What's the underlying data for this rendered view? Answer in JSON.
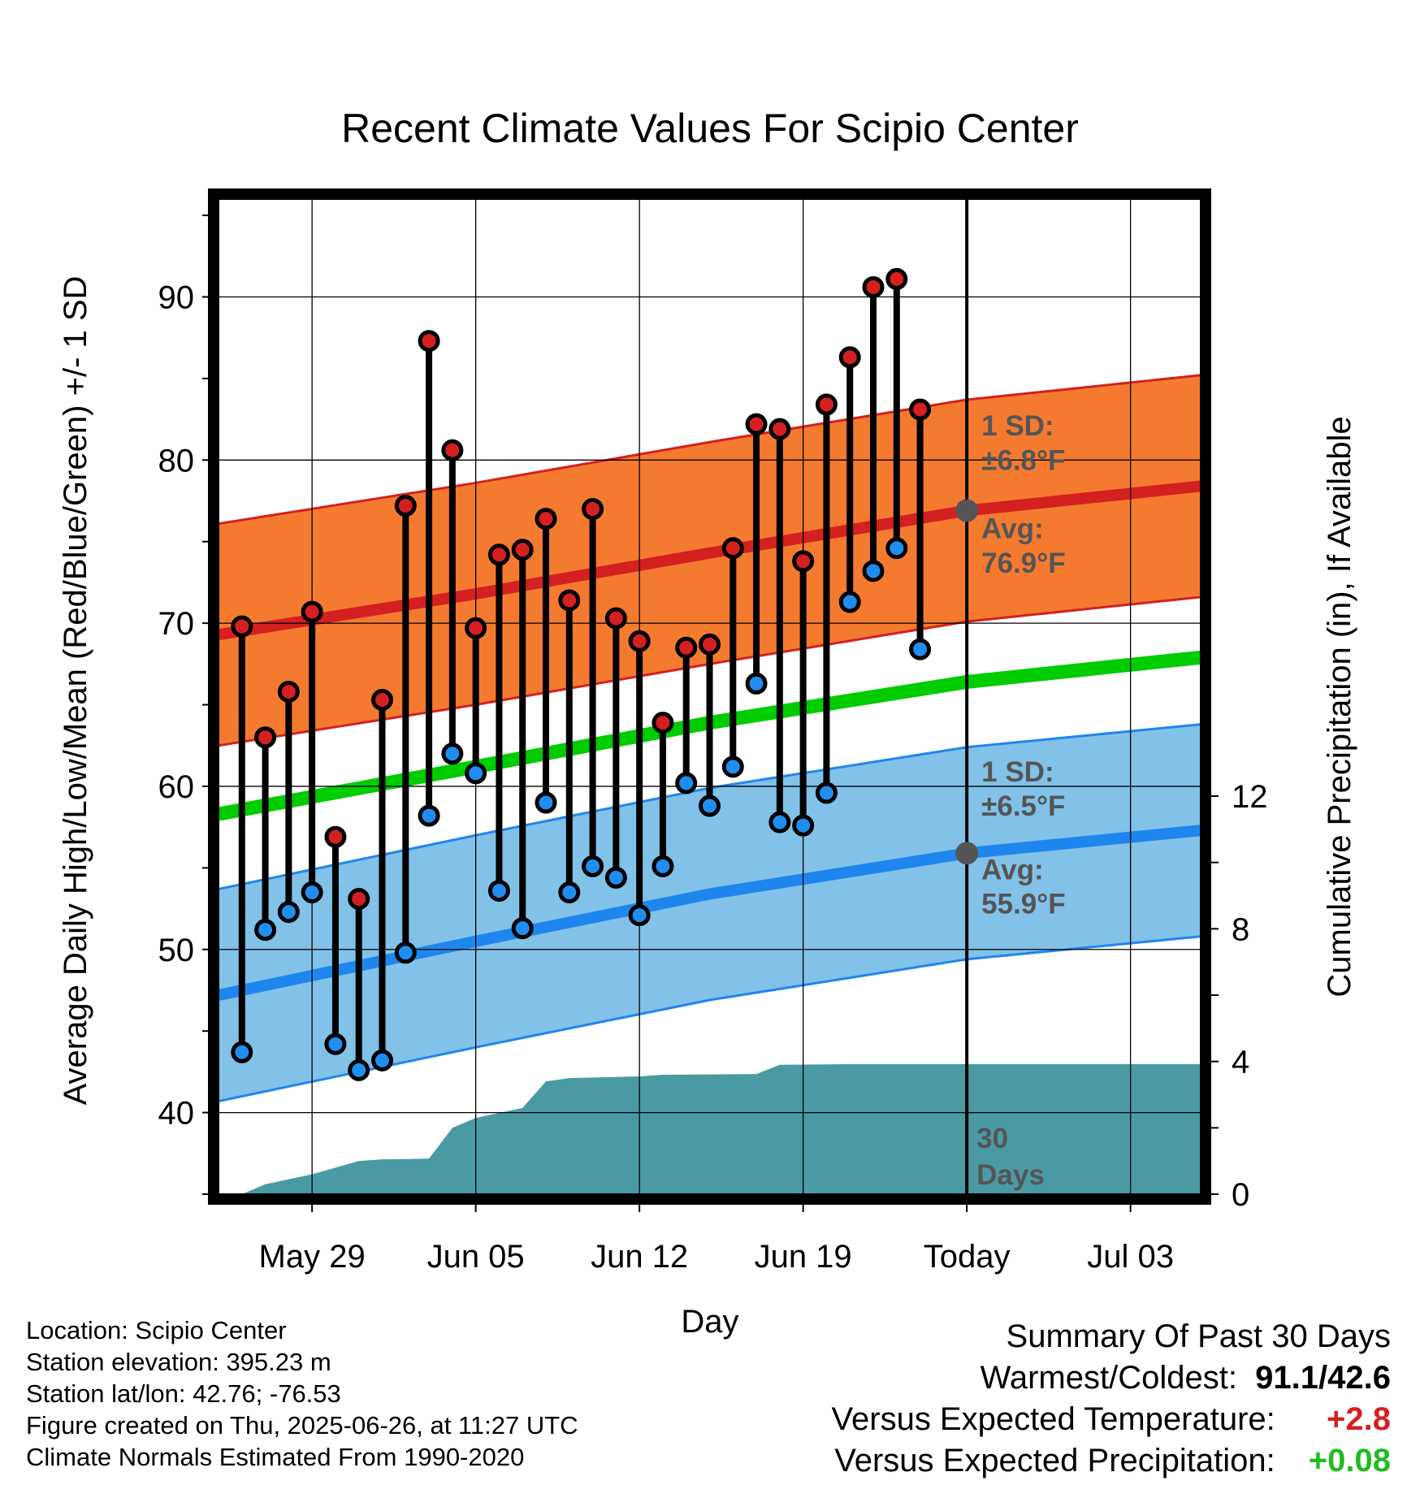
{
  "chart_data": {
    "type": "line",
    "title": "Recent Climate Values For Scipio Center",
    "xlabel": "Day",
    "ylabel": "Average Daily High/Low/Mean (Red/Blue/Green) +/- 1 SD",
    "y2label": "Cumulative Precipitation (in), If Available",
    "ylim": [
      35,
      96
    ],
    "y2lim": [
      0,
      30
    ],
    "xlim": [
      "2025-05-25",
      "2025-07-06"
    ],
    "yticks": [
      "40",
      "50",
      "60",
      "70",
      "80",
      "90"
    ],
    "y2ticks": [
      "0",
      "4",
      "8",
      "12"
    ],
    "xticks": [
      {
        "date": "2025-05-29",
        "label": "May 29"
      },
      {
        "date": "2025-06-05",
        "label": "Jun 05"
      },
      {
        "date": "2025-06-12",
        "label": "Jun 12"
      },
      {
        "date": "2025-06-19",
        "label": "Jun 19"
      },
      {
        "date": "2025-06-26",
        "label": "Today"
      },
      {
        "date": "2025-07-03",
        "label": "Jul 03"
      }
    ],
    "daily": [
      {
        "date": "2025-05-26",
        "high": 69.8,
        "low": 43.7
      },
      {
        "date": "2025-05-27",
        "high": 63.0,
        "low": 51.2
      },
      {
        "date": "2025-05-28",
        "high": 65.8,
        "low": 52.3
      },
      {
        "date": "2025-05-29",
        "high": 70.7,
        "low": 53.5
      },
      {
        "date": "2025-05-30",
        "high": 56.9,
        "low": 44.2
      },
      {
        "date": "2025-05-31",
        "high": 53.1,
        "low": 42.6
      },
      {
        "date": "2025-06-01",
        "high": 65.3,
        "low": 43.2
      },
      {
        "date": "2025-06-02",
        "high": 77.2,
        "low": 49.8
      },
      {
        "date": "2025-06-03",
        "high": 87.3,
        "low": 58.2
      },
      {
        "date": "2025-06-04",
        "high": 80.6,
        "low": 62.0
      },
      {
        "date": "2025-06-05",
        "high": 69.7,
        "low": 60.8
      },
      {
        "date": "2025-06-06",
        "high": 74.2,
        "low": 53.6
      },
      {
        "date": "2025-06-07",
        "high": 74.5,
        "low": 51.3
      },
      {
        "date": "2025-06-08",
        "high": 76.4,
        "low": 59.0
      },
      {
        "date": "2025-06-09",
        "high": 71.4,
        "low": 53.5
      },
      {
        "date": "2025-06-10",
        "high": 77.0,
        "low": 55.1
      },
      {
        "date": "2025-06-11",
        "high": 70.3,
        "low": 54.4
      },
      {
        "date": "2025-06-12",
        "high": 68.9,
        "low": 52.1
      },
      {
        "date": "2025-06-13",
        "high": 63.9,
        "low": 55.1
      },
      {
        "date": "2025-06-14",
        "high": 68.5,
        "low": 60.2
      },
      {
        "date": "2025-06-15",
        "high": 68.7,
        "low": 58.8
      },
      {
        "date": "2025-06-16",
        "high": 74.6,
        "low": 61.2
      },
      {
        "date": "2025-06-17",
        "high": 82.2,
        "low": 66.3
      },
      {
        "date": "2025-06-18",
        "high": 81.9,
        "low": 57.8
      },
      {
        "date": "2025-06-19",
        "high": 73.8,
        "low": 57.6
      },
      {
        "date": "2025-06-20",
        "high": 83.4,
        "low": 59.6
      },
      {
        "date": "2025-06-21",
        "high": 86.3,
        "low": 71.3
      },
      {
        "date": "2025-06-22",
        "high": 90.6,
        "low": 73.2
      },
      {
        "date": "2025-06-23",
        "high": 91.1,
        "low": 74.6
      },
      {
        "date": "2025-06-24",
        "high": 83.1,
        "low": 68.4
      }
    ],
    "normals": {
      "high": [
        {
          "date": "2025-05-25",
          "value": 69.3
        },
        {
          "date": "2025-06-05",
          "value": 71.8
        },
        {
          "date": "2025-06-15",
          "value": 74.3
        },
        {
          "date": "2025-06-26",
          "value": 76.9
        },
        {
          "date": "2025-07-06",
          "value": 78.4
        }
      ],
      "high_sd": 6.8,
      "low": [
        {
          "date": "2025-05-25",
          "value": 47.2
        },
        {
          "date": "2025-06-05",
          "value": 50.5
        },
        {
          "date": "2025-06-15",
          "value": 53.4
        },
        {
          "date": "2025-06-26",
          "value": 55.9
        },
        {
          "date": "2025-07-06",
          "value": 57.3
        }
      ],
      "low_sd": 6.5,
      "mean": [
        {
          "date": "2025-05-25",
          "value": 58.3
        },
        {
          "date": "2025-06-05",
          "value": 61.2
        },
        {
          "date": "2025-06-15",
          "value": 63.9
        },
        {
          "date": "2025-06-26",
          "value": 66.4
        },
        {
          "date": "2025-07-06",
          "value": 67.9
        }
      ]
    },
    "precip_cumulative": [
      {
        "date": "2025-05-26",
        "value": 0.0
      },
      {
        "date": "2025-05-27",
        "value": 0.3
      },
      {
        "date": "2025-05-29",
        "value": 0.6
      },
      {
        "date": "2025-05-31",
        "value": 1.0
      },
      {
        "date": "2025-06-01",
        "value": 1.05
      },
      {
        "date": "2025-06-03",
        "value": 1.07
      },
      {
        "date": "2025-06-04",
        "value": 2.0
      },
      {
        "date": "2025-06-05",
        "value": 2.3
      },
      {
        "date": "2025-06-07",
        "value": 2.6
      },
      {
        "date": "2025-06-08",
        "value": 3.4
      },
      {
        "date": "2025-06-09",
        "value": 3.5
      },
      {
        "date": "2025-06-12",
        "value": 3.55
      },
      {
        "date": "2025-06-13",
        "value": 3.6
      },
      {
        "date": "2025-06-17",
        "value": 3.62
      },
      {
        "date": "2025-06-18",
        "value": 3.9
      },
      {
        "date": "2025-06-21",
        "value": 3.92
      },
      {
        "date": "2025-07-06",
        "value": 3.92
      }
    ],
    "today": "2025-06-26",
    "annotations": {
      "high_sd_line1": "1 SD:",
      "high_sd_line2": "±6.8°F",
      "high_avg_line1": "Avg:",
      "high_avg_line2": "76.9°F",
      "low_sd_line1": "1 SD:",
      "low_sd_line2": "±6.5°F",
      "low_avg_line1": "Avg:",
      "low_avg_line2": "55.9°F",
      "days_line1": "30",
      "days_line2": "Days"
    },
    "colors": {
      "high": "#d42020",
      "low": "#2a8ae6",
      "mean": "#00cc00",
      "high_band": "#f47a30",
      "low_band": "#82c1e8",
      "precip": "#4a9aa4"
    },
    "grid": true
  },
  "info": {
    "location": "Location: Scipio Center",
    "elevation": "Station elevation: 395.23 m",
    "latlon": "Station lat/lon: 42.76; -76.53",
    "created": "Figure created on Thu, 2025-06-26, at 11:27 UTC",
    "normals": "Climate Normals Estimated From 1990-2020"
  },
  "summary": {
    "title": "Summary Of Past 30 Days",
    "warm_cold_label": "Warmest/Coldest:",
    "warm_cold_value": "91.1/42.6",
    "temp_label": "Versus Expected Temperature:",
    "temp_value": "+2.8",
    "temp_color": "#d42020",
    "precip_label": "Versus Expected Precipitation:",
    "precip_value": "+0.08",
    "precip_color": "#22bb22"
  }
}
